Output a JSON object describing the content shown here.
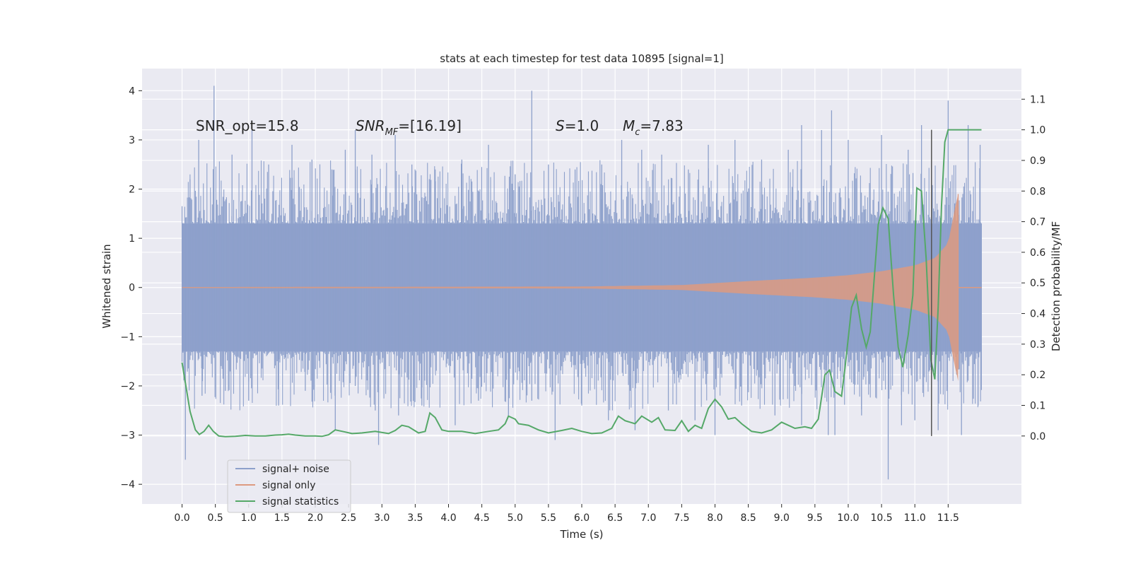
{
  "chart_data": {
    "type": "line",
    "title": "stats at each timestep for test data 10895 [signal=1]",
    "xlabel": "Time (s)",
    "ylabel": "Whitened strain",
    "y2label": "Detection probability/MF",
    "xlim": [
      -0.6,
      12.6
    ],
    "ylim": [
      -4.4,
      4.45
    ],
    "y2lim": [
      -0.222,
      1.2
    ],
    "x_ticks": [
      "0.0",
      "0.5",
      "1.0",
      "1.5",
      "2.0",
      "2.5",
      "3.0",
      "3.5",
      "4.0",
      "4.5",
      "5.0",
      "5.5",
      "6.0",
      "6.5",
      "7.0",
      "7.5",
      "8.0",
      "8.5",
      "9.0",
      "9.5",
      "10.0",
      "10.5",
      "11.0",
      "11.5"
    ],
    "y_ticks": [
      "4",
      "3",
      "2",
      "1",
      "0",
      "−1",
      "−2",
      "−3",
      "−4"
    ],
    "y2_ticks": [
      "1.1",
      "1.0",
      "0.9",
      "0.8",
      "0.7",
      "0.6",
      "0.5",
      "0.4",
      "0.3",
      "0.2",
      "0.1",
      "0.0"
    ],
    "grid": true,
    "legend_position": "lower-left",
    "annotations": {
      "snr_opt": "SNR_opt=15.8",
      "snr_mf_sym": "SNR",
      "snr_mf_sub": "MF",
      "snr_mf_val": "=[16.19]",
      "s_sym": "S",
      "s_val": "=1.0",
      "mc_sym": "M",
      "mc_sub": "c",
      "mc_val": "=7.83"
    },
    "marker_line_x": 11.25,
    "series": [
      {
        "name": "signal+ noise",
        "axis": "left",
        "color": "#8da0cb",
        "style": "dense-noise",
        "x_range": [
          0.0,
          12.0
        ],
        "typical_amplitude": 1.3,
        "max": 4.1,
        "min": -3.9
      },
      {
        "name": "signal only",
        "axis": "left",
        "color": "#dd9a80",
        "style": "chirp",
        "x_range": [
          0.0,
          11.65
        ],
        "envelope": [
          [
            0.0,
            0.01
          ],
          [
            6.0,
            0.02
          ],
          [
            7.5,
            0.05
          ],
          [
            8.5,
            0.13
          ],
          [
            9.5,
            0.2
          ],
          [
            10.0,
            0.25
          ],
          [
            10.5,
            0.33
          ],
          [
            11.0,
            0.45
          ],
          [
            11.3,
            0.6
          ],
          [
            11.5,
            0.9
          ],
          [
            11.6,
            1.6
          ],
          [
            11.65,
            1.9
          ]
        ]
      },
      {
        "name": "signal statistics",
        "axis": "right",
        "color": "#55a868",
        "style": "line",
        "points": [
          [
            0.0,
            0.24
          ],
          [
            0.12,
            0.08
          ],
          [
            0.2,
            0.02
          ],
          [
            0.26,
            0.005
          ],
          [
            0.33,
            0.015
          ],
          [
            0.4,
            0.035
          ],
          [
            0.47,
            0.015
          ],
          [
            0.55,
            0.0
          ],
          [
            0.65,
            -0.002
          ],
          [
            0.8,
            -0.001
          ],
          [
            0.95,
            0.002
          ],
          [
            1.1,
            0.0
          ],
          [
            1.25,
            0.0
          ],
          [
            1.4,
            0.003
          ],
          [
            1.5,
            0.004
          ],
          [
            1.6,
            0.006
          ],
          [
            1.7,
            0.003
          ],
          [
            1.85,
            0.0
          ],
          [
            2.0,
            0.0
          ],
          [
            2.1,
            -0.001
          ],
          [
            2.2,
            0.004
          ],
          [
            2.3,
            0.02
          ],
          [
            2.45,
            0.013
          ],
          [
            2.55,
            0.008
          ],
          [
            2.7,
            0.01
          ],
          [
            2.9,
            0.015
          ],
          [
            3.1,
            0.008
          ],
          [
            3.2,
            0.018
          ],
          [
            3.3,
            0.035
          ],
          [
            3.4,
            0.03
          ],
          [
            3.55,
            0.01
          ],
          [
            3.65,
            0.015
          ],
          [
            3.72,
            0.075
          ],
          [
            3.8,
            0.06
          ],
          [
            3.9,
            0.02
          ],
          [
            4.0,
            0.015
          ],
          [
            4.2,
            0.015
          ],
          [
            4.4,
            0.008
          ],
          [
            4.6,
            0.015
          ],
          [
            4.75,
            0.02
          ],
          [
            4.85,
            0.04
          ],
          [
            4.9,
            0.065
          ],
          [
            5.0,
            0.055
          ],
          [
            5.05,
            0.04
          ],
          [
            5.2,
            0.035
          ],
          [
            5.35,
            0.02
          ],
          [
            5.5,
            0.01
          ],
          [
            5.7,
            0.018
          ],
          [
            5.85,
            0.025
          ],
          [
            6.0,
            0.015
          ],
          [
            6.15,
            0.008
          ],
          [
            6.3,
            0.01
          ],
          [
            6.45,
            0.025
          ],
          [
            6.55,
            0.065
          ],
          [
            6.65,
            0.05
          ],
          [
            6.8,
            0.04
          ],
          [
            6.9,
            0.065
          ],
          [
            7.05,
            0.045
          ],
          [
            7.15,
            0.06
          ],
          [
            7.25,
            0.02
          ],
          [
            7.4,
            0.018
          ],
          [
            7.5,
            0.05
          ],
          [
            7.6,
            0.015
          ],
          [
            7.7,
            0.035
          ],
          [
            7.8,
            0.025
          ],
          [
            7.9,
            0.09
          ],
          [
            8.0,
            0.12
          ],
          [
            8.1,
            0.095
          ],
          [
            8.2,
            0.055
          ],
          [
            8.3,
            0.06
          ],
          [
            8.4,
            0.04
          ],
          [
            8.55,
            0.015
          ],
          [
            8.7,
            0.01
          ],
          [
            8.85,
            0.02
          ],
          [
            9.0,
            0.045
          ],
          [
            9.1,
            0.035
          ],
          [
            9.2,
            0.025
          ],
          [
            9.35,
            0.03
          ],
          [
            9.45,
            0.025
          ],
          [
            9.55,
            0.055
          ],
          [
            9.65,
            0.2
          ],
          [
            9.72,
            0.215
          ],
          [
            9.8,
            0.145
          ],
          [
            9.9,
            0.13
          ],
          [
            9.95,
            0.22
          ],
          [
            10.05,
            0.42
          ],
          [
            10.12,
            0.46
          ],
          [
            10.2,
            0.35
          ],
          [
            10.27,
            0.29
          ],
          [
            10.33,
            0.34
          ],
          [
            10.45,
            0.69
          ],
          [
            10.52,
            0.745
          ],
          [
            10.6,
            0.71
          ],
          [
            10.68,
            0.46
          ],
          [
            10.75,
            0.29
          ],
          [
            10.82,
            0.225
          ],
          [
            10.9,
            0.33
          ],
          [
            10.97,
            0.46
          ],
          [
            11.03,
            0.81
          ],
          [
            11.1,
            0.8
          ],
          [
            11.17,
            0.58
          ],
          [
            11.24,
            0.25
          ],
          [
            11.3,
            0.185
          ],
          [
            11.35,
            0.42
          ],
          [
            11.4,
            0.75
          ],
          [
            11.45,
            0.96
          ],
          [
            11.5,
            1.0
          ],
          [
            11.6,
            1.0
          ],
          [
            11.8,
            1.0
          ],
          [
            12.0,
            1.0
          ]
        ]
      }
    ],
    "noise_spikes": [
      [
        0.12,
        2.2
      ],
      [
        0.25,
        3.0
      ],
      [
        0.48,
        4.1
      ],
      [
        0.75,
        2.7
      ],
      [
        1.05,
        3.2
      ],
      [
        1.3,
        2.5
      ],
      [
        1.65,
        2.9
      ],
      [
        1.95,
        2.6
      ],
      [
        2.25,
        2.4
      ],
      [
        2.45,
        2.8
      ],
      [
        2.6,
        3.2
      ],
      [
        2.85,
        2.7
      ],
      [
        3.2,
        3.1
      ],
      [
        3.45,
        2.5
      ],
      [
        3.8,
        2.4
      ],
      [
        4.2,
        2.6
      ],
      [
        4.6,
        2.9
      ],
      [
        5.0,
        2.3
      ],
      [
        5.25,
        4.0
      ],
      [
        5.5,
        2.5
      ],
      [
        5.9,
        2.4
      ],
      [
        6.3,
        2.5
      ],
      [
        6.6,
        3.0
      ],
      [
        6.9,
        2.8
      ],
      [
        7.2,
        2.7
      ],
      [
        7.6,
        2.4
      ],
      [
        7.9,
        2.9
      ],
      [
        8.3,
        3.0
      ],
      [
        8.7,
        2.6
      ],
      [
        9.1,
        2.8
      ],
      [
        9.3,
        3.3
      ],
      [
        9.6,
        3.2
      ],
      [
        9.75,
        3.6
      ],
      [
        10.0,
        3.0
      ],
      [
        10.5,
        3.1
      ],
      [
        10.9,
        2.8
      ],
      [
        11.1,
        3.3
      ],
      [
        11.5,
        3.8
      ],
      [
        11.8,
        3.3
      ],
      [
        11.98,
        2.9
      ],
      [
        0.05,
        -3.5
      ],
      [
        0.3,
        -2.2
      ],
      [
        0.65,
        -2.1
      ],
      [
        1.0,
        -2.3
      ],
      [
        1.45,
        -2.4
      ],
      [
        1.85,
        -2.1
      ],
      [
        2.3,
        -2.9
      ],
      [
        2.6,
        -2.0
      ],
      [
        2.9,
        -2.5
      ],
      [
        2.95,
        -3.2
      ],
      [
        3.25,
        -2.6
      ],
      [
        3.6,
        -2.4
      ],
      [
        4.1,
        -2.8
      ],
      [
        4.45,
        -2.3
      ],
      [
        4.9,
        -2.6
      ],
      [
        5.25,
        -2.3
      ],
      [
        5.6,
        -3.1
      ],
      [
        6.0,
        -2.4
      ],
      [
        6.4,
        -2.7
      ],
      [
        6.8,
        -2.9
      ],
      [
        7.3,
        -2.5
      ],
      [
        7.7,
        -2.7
      ],
      [
        8.0,
        -3.0
      ],
      [
        8.4,
        -2.4
      ],
      [
        8.9,
        -2.6
      ],
      [
        9.3,
        -2.8
      ],
      [
        9.7,
        -3.0
      ],
      [
        9.8,
        -3.0
      ],
      [
        10.2,
        -2.6
      ],
      [
        10.6,
        -3.9
      ],
      [
        10.8,
        -2.8
      ],
      [
        11.0,
        -2.7
      ],
      [
        11.35,
        -2.9
      ],
      [
        11.7,
        -3.0
      ],
      [
        11.95,
        -2.4
      ]
    ],
    "legend": {
      "items": [
        "signal+ noise",
        "signal only",
        "signal statistics"
      ]
    }
  }
}
